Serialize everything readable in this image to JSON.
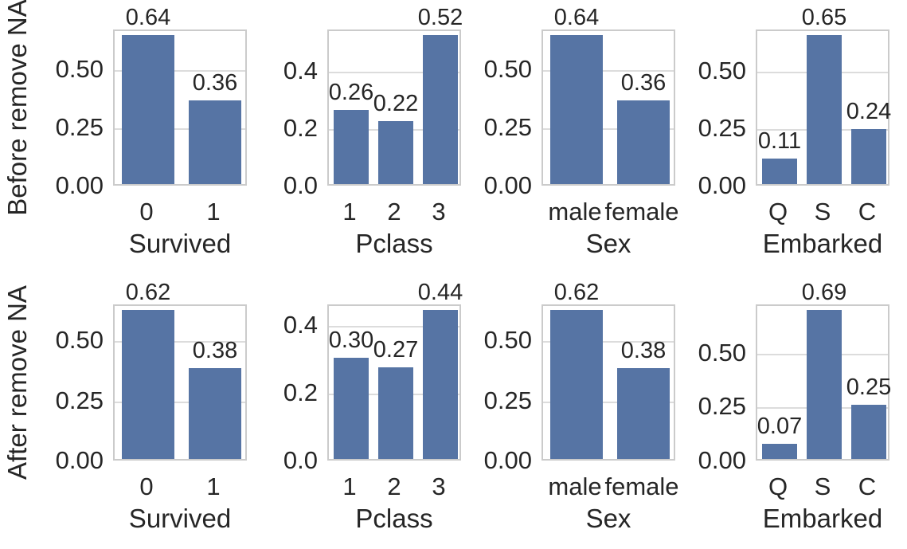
{
  "figure": {
    "background": "#ffffff",
    "bar_color": "#5674a4",
    "grid_color": "#dcdcdc",
    "spine_color": "#cbcbcb",
    "text_color": "#262626"
  },
  "chart_data": {
    "type": "bar",
    "title": "",
    "layout": {
      "rows": 2,
      "cols": 4,
      "grid": true,
      "legend": "none"
    },
    "row_labels": [
      "Before remove NA",
      "After remove NA"
    ],
    "col_xlabels": [
      "Survived",
      "Pclass",
      "Sex",
      "Embarked"
    ],
    "panels": [
      {
        "row": 0,
        "col": 0,
        "ylabel": "Before remove NA",
        "xlabel": "Survived",
        "categories": [
          "0",
          "1"
        ],
        "values": [
          0.64,
          0.36
        ],
        "bar_labels": [
          "0.64",
          "0.36"
        ],
        "yticks": [
          0,
          0.25,
          0.5
        ],
        "ytick_labels": [
          "0.00",
          "0.25",
          "0.50"
        ],
        "ylim": [
          0,
          0.672
        ]
      },
      {
        "row": 0,
        "col": 1,
        "ylabel": "Before remove NA",
        "xlabel": "Pclass",
        "categories": [
          "1",
          "2",
          "3"
        ],
        "values": [
          0.26,
          0.22,
          0.52
        ],
        "bar_labels": [
          "0.26",
          "0.22",
          "0.52"
        ],
        "yticks": [
          0,
          0.2,
          0.4
        ],
        "ytick_labels": [
          "0.0",
          "0.2",
          "0.4"
        ],
        "ylim": [
          0,
          0.546
        ]
      },
      {
        "row": 0,
        "col": 2,
        "ylabel": "Before remove NA",
        "xlabel": "Sex",
        "categories": [
          "male",
          "female"
        ],
        "values": [
          0.64,
          0.36
        ],
        "bar_labels": [
          "0.64",
          "0.36"
        ],
        "yticks": [
          0,
          0.25,
          0.5
        ],
        "ytick_labels": [
          "0.00",
          "0.25",
          "0.50"
        ],
        "ylim": [
          0,
          0.672
        ]
      },
      {
        "row": 0,
        "col": 3,
        "ylabel": "Before remove NA",
        "xlabel": "Embarked",
        "categories": [
          "Q",
          "S",
          "C"
        ],
        "values": [
          0.11,
          0.65,
          0.24
        ],
        "bar_labels": [
          "0.11",
          "0.65",
          "0.24"
        ],
        "yticks": [
          0,
          0.25,
          0.5
        ],
        "ytick_labels": [
          "0.00",
          "0.25",
          "0.50"
        ],
        "ylim": [
          0,
          0.6825
        ]
      },
      {
        "row": 1,
        "col": 0,
        "ylabel": "After remove NA",
        "xlabel": "Survived",
        "categories": [
          "0",
          "1"
        ],
        "values": [
          0.62,
          0.38
        ],
        "bar_labels": [
          "0.62",
          "0.38"
        ],
        "yticks": [
          0,
          0.25,
          0.5
        ],
        "ytick_labels": [
          "0.00",
          "0.25",
          "0.50"
        ],
        "ylim": [
          0,
          0.651
        ]
      },
      {
        "row": 1,
        "col": 1,
        "ylabel": "After remove NA",
        "xlabel": "Pclass",
        "categories": [
          "1",
          "2",
          "3"
        ],
        "values": [
          0.3,
          0.27,
          0.44
        ],
        "bar_labels": [
          "0.30",
          "0.27",
          "0.44"
        ],
        "yticks": [
          0,
          0.2,
          0.4
        ],
        "ytick_labels": [
          "0.0",
          "0.2",
          "0.4"
        ],
        "ylim": [
          0,
          0.462
        ]
      },
      {
        "row": 1,
        "col": 2,
        "ylabel": "After remove NA",
        "xlabel": "Sex",
        "categories": [
          "male",
          "female"
        ],
        "values": [
          0.62,
          0.38
        ],
        "bar_labels": [
          "0.62",
          "0.38"
        ],
        "yticks": [
          0,
          0.25,
          0.5
        ],
        "ytick_labels": [
          "0.00",
          "0.25",
          "0.50"
        ],
        "ylim": [
          0,
          0.651
        ]
      },
      {
        "row": 1,
        "col": 3,
        "ylabel": "After remove NA",
        "xlabel": "Embarked",
        "categories": [
          "Q",
          "S",
          "C"
        ],
        "values": [
          0.07,
          0.69,
          0.25
        ],
        "bar_labels": [
          "0.07",
          "0.69",
          "0.25"
        ],
        "yticks": [
          0,
          0.25,
          0.5
        ],
        "ytick_labels": [
          "0.00",
          "0.25",
          "0.50"
        ],
        "ylim": [
          0,
          0.7245
        ]
      }
    ]
  }
}
